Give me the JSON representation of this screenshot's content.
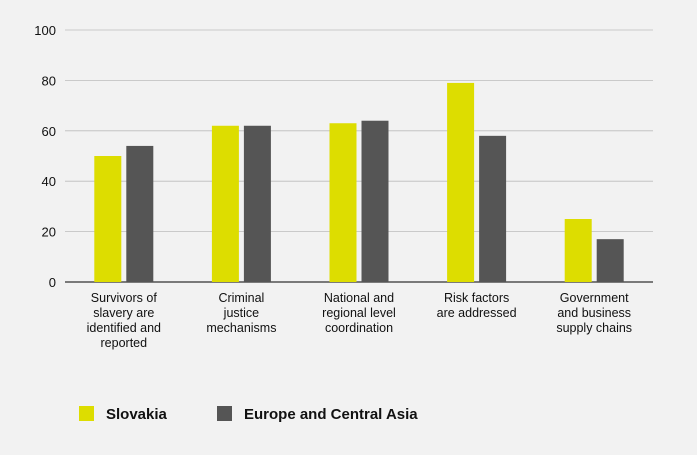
{
  "chart_data": {
    "type": "bar",
    "categories": [
      [
        "Survivors of",
        "slavery are",
        "identified and",
        "reported"
      ],
      [
        "Criminal",
        "justice",
        "mechanisms"
      ],
      [
        "National and",
        "regional level",
        "coordination"
      ],
      [
        "Risk factors",
        "are addressed"
      ],
      [
        "Government",
        "and business",
        "supply chains"
      ]
    ],
    "series": [
      {
        "name": "Slovakia",
        "color": "#dddd00",
        "values": [
          50,
          62,
          63,
          79,
          25
        ]
      },
      {
        "name": "Europe and Central Asia",
        "color": "#555555",
        "values": [
          54,
          62,
          64,
          58,
          17
        ]
      }
    ],
    "ylim": [
      0,
      100
    ],
    "yticks": [
      "0",
      "20",
      "40",
      "60",
      "80",
      "100"
    ],
    "grid": true,
    "legend_position": "bottom-left"
  }
}
